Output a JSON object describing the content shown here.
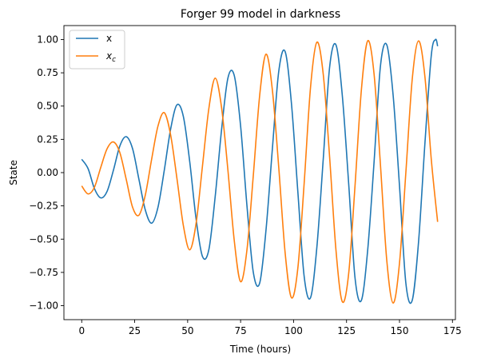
{
  "chart_data": {
    "type": "line",
    "title": "Forger 99 model in darkness",
    "xlabel": "Time (hours)",
    "ylabel": "State",
    "xlim": [
      -8.4,
      176.4
    ],
    "ylim": [
      -1.105,
      1.105
    ],
    "xticks": [
      0,
      25,
      50,
      75,
      100,
      125,
      150,
      175
    ],
    "xtick_labels": [
      "0",
      "25",
      "50",
      "75",
      "100",
      "125",
      "150",
      "175"
    ],
    "yticks": [
      -1.0,
      -0.75,
      -0.5,
      -0.25,
      0.0,
      0.25,
      0.5,
      0.75,
      1.0
    ],
    "ytick_labels": [
      "−1.00",
      "−0.75",
      "−0.50",
      "−0.25",
      "0.00",
      "0.25",
      "0.50",
      "0.75",
      "1.00"
    ],
    "grid": false,
    "legend_position": "top-left",
    "series": [
      {
        "name": "x",
        "color": "#1f77b4",
        "points": [
          [
            0,
            0.1
          ],
          [
            3,
            0.03
          ],
          [
            6,
            -0.12
          ],
          [
            9,
            -0.19
          ],
          [
            12,
            -0.14
          ],
          [
            15,
            0.02
          ],
          [
            18,
            0.2
          ],
          [
            21,
            0.27
          ],
          [
            24,
            0.18
          ],
          [
            27,
            -0.05
          ],
          [
            30,
            -0.28
          ],
          [
            33,
            -0.38
          ],
          [
            36,
            -0.26
          ],
          [
            39,
            0.02
          ],
          [
            42,
            0.33
          ],
          [
            45,
            0.51
          ],
          [
            48,
            0.42
          ],
          [
            51,
            0.08
          ],
          [
            54,
            -0.35
          ],
          [
            57,
            -0.63
          ],
          [
            60,
            -0.58
          ],
          [
            63,
            -0.18
          ],
          [
            66,
            0.32
          ],
          [
            69,
            0.71
          ],
          [
            72,
            0.73
          ],
          [
            75,
            0.35
          ],
          [
            78,
            -0.25
          ],
          [
            81,
            -0.75
          ],
          [
            84,
            -0.83
          ],
          [
            87,
            -0.43
          ],
          [
            90,
            0.18
          ],
          [
            93,
            0.76
          ],
          [
            96,
            0.91
          ],
          [
            99,
            0.52
          ],
          [
            102,
            -0.14
          ],
          [
            105,
            -0.78
          ],
          [
            108,
            -0.94
          ],
          [
            111,
            -0.56
          ],
          [
            114,
            0.1
          ],
          [
            117,
            0.79
          ],
          [
            120,
            0.96
          ],
          [
            123,
            0.58
          ],
          [
            126,
            -0.08
          ],
          [
            129,
            -0.79
          ],
          [
            132,
            -0.96
          ],
          [
            135,
            -0.58
          ],
          [
            138,
            0.08
          ],
          [
            141,
            0.8
          ],
          [
            144,
            0.96
          ],
          [
            147,
            0.58
          ],
          [
            150,
            -0.1
          ],
          [
            153,
            -0.83
          ],
          [
            156,
            -0.96
          ],
          [
            159,
            -0.52
          ],
          [
            162,
            0.22
          ],
          [
            165,
            0.88
          ],
          [
            167,
            1.0
          ],
          [
            168,
            0.95
          ]
        ]
      },
      {
        "name": "x_c",
        "color": "#ff7f0e",
        "points": [
          [
            0,
            -0.1
          ],
          [
            3,
            -0.16
          ],
          [
            6,
            -0.11
          ],
          [
            9,
            0.04
          ],
          [
            12,
            0.18
          ],
          [
            15,
            0.23
          ],
          [
            18,
            0.15
          ],
          [
            21,
            -0.05
          ],
          [
            24,
            -0.26
          ],
          [
            27,
            -0.32
          ],
          [
            30,
            -0.17
          ],
          [
            33,
            0.1
          ],
          [
            36,
            0.35
          ],
          [
            39,
            0.45
          ],
          [
            42,
            0.28
          ],
          [
            45,
            -0.05
          ],
          [
            48,
            -0.4
          ],
          [
            51,
            -0.58
          ],
          [
            54,
            -0.38
          ],
          [
            57,
            0.05
          ],
          [
            60,
            0.48
          ],
          [
            63,
            0.71
          ],
          [
            66,
            0.49
          ],
          [
            69,
            0.02
          ],
          [
            72,
            -0.51
          ],
          [
            75,
            -0.82
          ],
          [
            78,
            -0.58
          ],
          [
            81,
            -0.02
          ],
          [
            84,
            0.58
          ],
          [
            87,
            0.89
          ],
          [
            90,
            0.62
          ],
          [
            93,
            0.04
          ],
          [
            96,
            -0.6
          ],
          [
            99,
            -0.94
          ],
          [
            102,
            -0.72
          ],
          [
            105,
            -0.08
          ],
          [
            108,
            0.64
          ],
          [
            111,
            0.98
          ],
          [
            114,
            0.74
          ],
          [
            117,
            0.12
          ],
          [
            120,
            -0.58
          ],
          [
            123,
            -0.97
          ],
          [
            126,
            -0.76
          ],
          [
            129,
            -0.1
          ],
          [
            132,
            0.62
          ],
          [
            135,
            0.99
          ],
          [
            138,
            0.74
          ],
          [
            141,
            0.06
          ],
          [
            144,
            -0.66
          ],
          [
            147,
            -0.98
          ],
          [
            150,
            -0.68
          ],
          [
            153,
            0.0
          ],
          [
            156,
            0.7
          ],
          [
            159,
            0.99
          ],
          [
            162,
            0.72
          ],
          [
            165,
            0.1
          ],
          [
            168,
            -0.37
          ]
        ]
      }
    ]
  }
}
